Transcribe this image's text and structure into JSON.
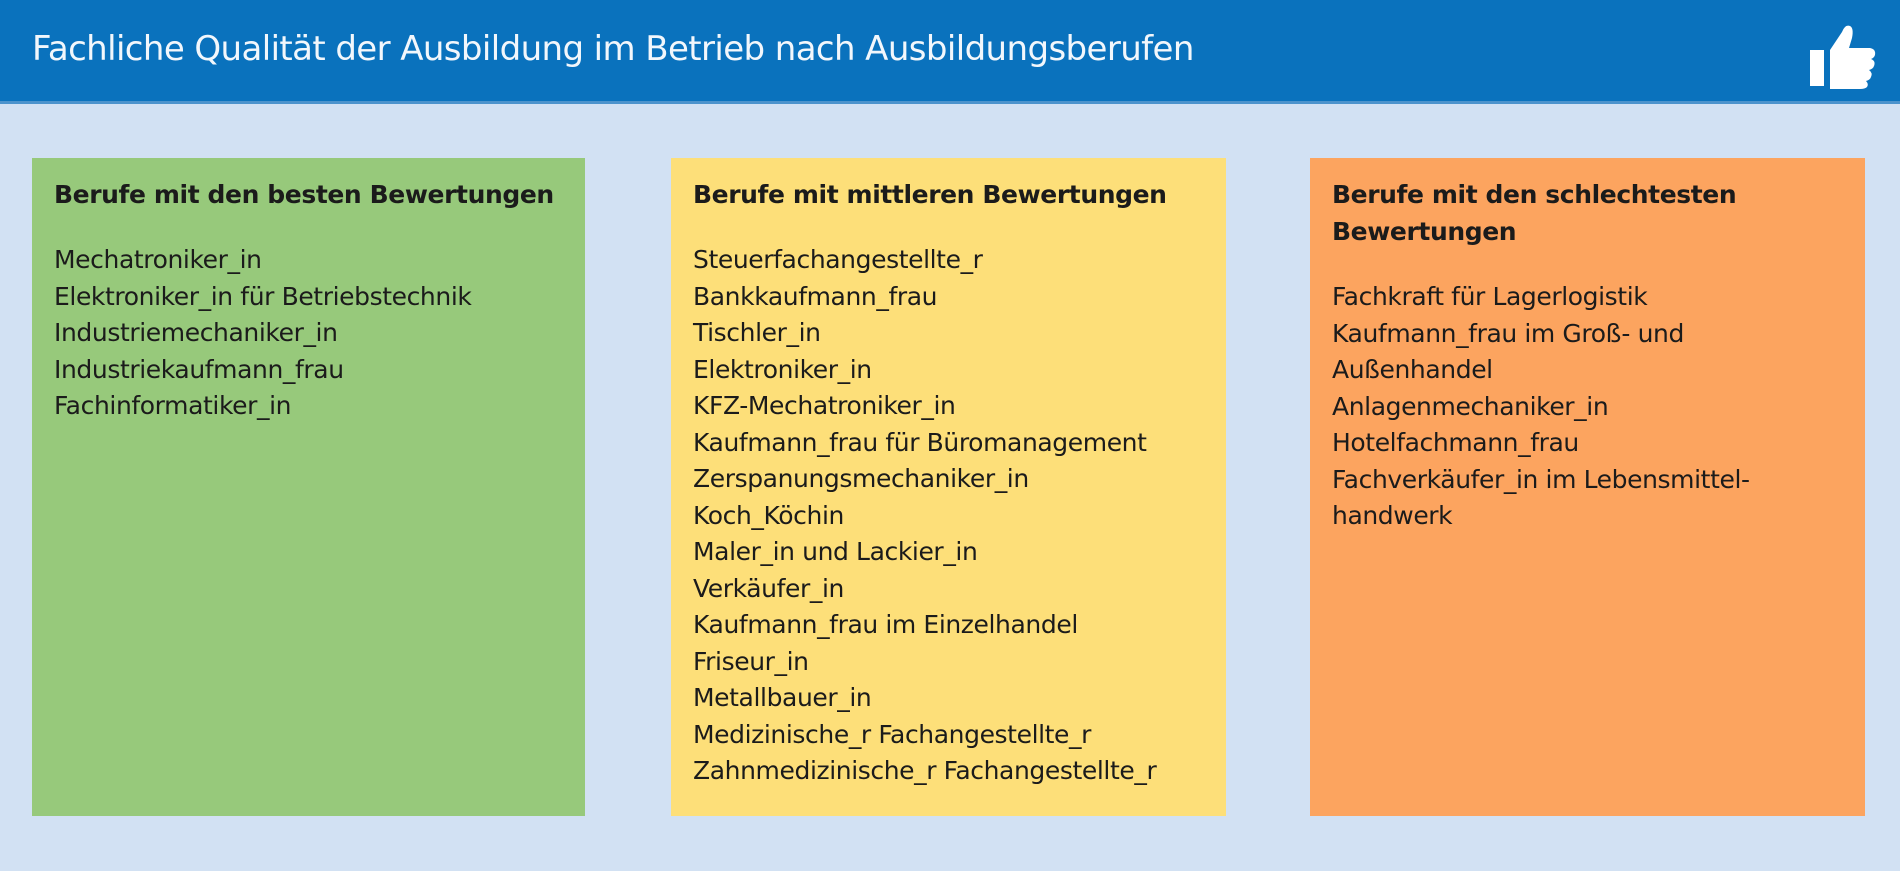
{
  "header": {
    "title": "Fachliche Qualität der Ausbildung im Betrieb nach Ausbildungsberufen",
    "icon": "thumbs-up-icon"
  },
  "colors": {
    "header": "#0a72bd",
    "background": "#d2e1f3",
    "best": "#97c97b",
    "middle": "#fddf79",
    "worst": "#fca45f"
  },
  "panels": [
    {
      "heading": "Berufe mit den besten Bewertungen",
      "items": [
        "Mechatroniker_in",
        "Elektroniker_in für Betriebstechnik",
        "Industriemechaniker_in",
        "Industriekaufmann_frau",
        "Fachinformatiker_in"
      ]
    },
    {
      "heading": "Berufe mit mittleren Bewertungen",
      "items": [
        "Steuerfachangestellte_r",
        "Bankkaufmann_frau",
        "Tischler_in",
        "Elektroniker_in",
        "KFZ-Mechatroniker_in",
        "Kaufmann_frau für Büromanagement",
        "Zerspanungsmechaniker_in",
        "Koch_Köchin",
        "Maler_in und Lackier_in",
        "Verkäufer_in",
        "Kaufmann_frau im Einzelhandel",
        "Friseur_in",
        "Metallbauer_in",
        "Medizinische_r Fachangestellte_r",
        "Zahnmedizinische_r Fachangestellte_r"
      ]
    },
    {
      "heading_lines": [
        "Berufe mit den schlechtesten",
        "Bewertungen"
      ],
      "items": [
        "Fachkraft für Lagerlogistik",
        "Kaufmann_frau im Groß- und",
        "Außenhandel",
        "Anlagenmechaniker_in",
        "Hotelfachmann_frau",
        "Fachverkäufer_in im Lebensmittel-",
        "handwerk"
      ]
    }
  ]
}
